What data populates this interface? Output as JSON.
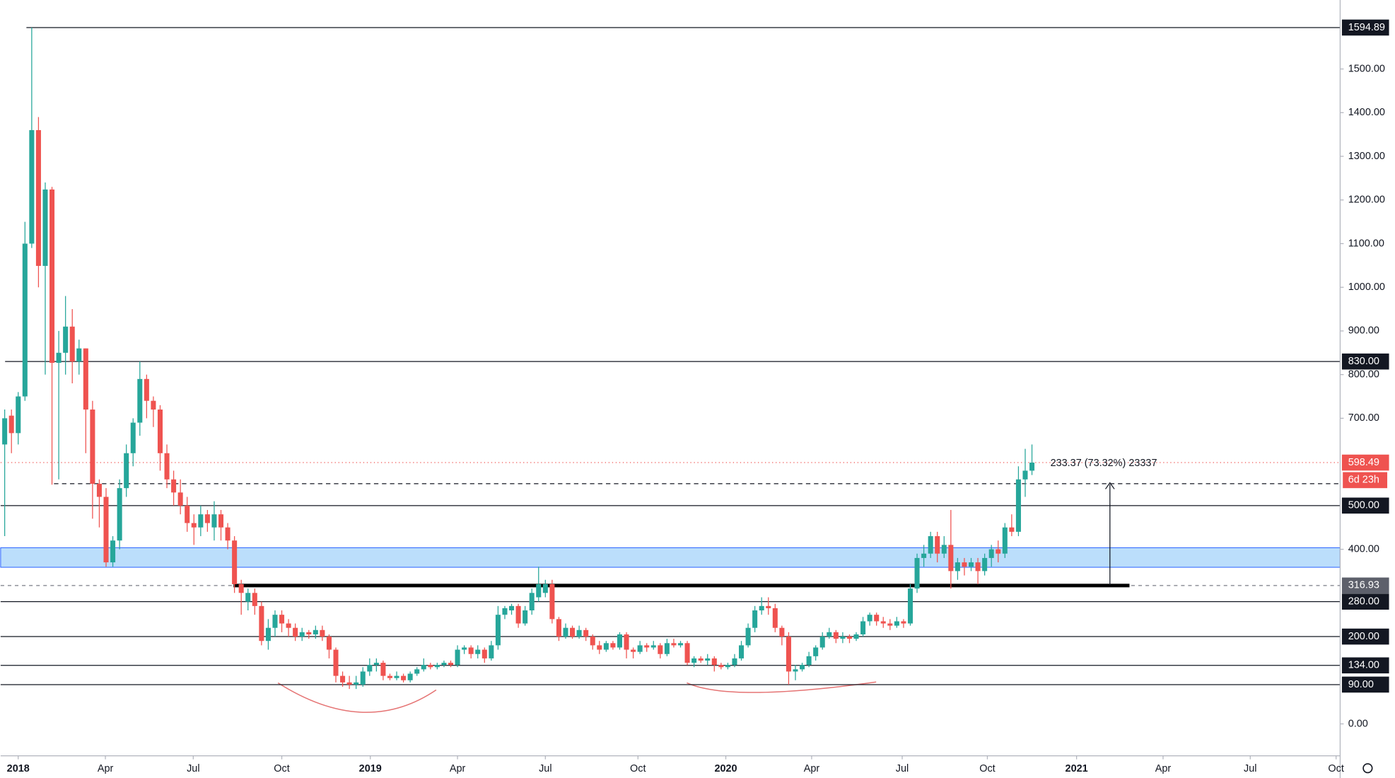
{
  "chart_data": {
    "type": "candlestick",
    "up_color": "#26a69a",
    "down_color": "#ef5350",
    "ohlc": [
      [
        640,
        720,
        430,
        700
      ],
      [
        706,
        720,
        620,
        666
      ],
      [
        666,
        760,
        640,
        750
      ],
      [
        750,
        1150,
        740,
        1100
      ],
      [
        1100,
        1595,
        1090,
        1360
      ],
      [
        1360,
        1390,
        1000,
        1049
      ],
      [
        1049,
        1240,
        800,
        1224
      ],
      [
        1224,
        1230,
        548,
        827
      ],
      [
        827,
        900,
        560,
        850
      ],
      [
        850,
        980,
        800,
        910
      ],
      [
        910,
        950,
        780,
        830
      ],
      [
        830,
        880,
        800,
        860
      ],
      [
        860,
        860,
        620,
        720
      ],
      [
        720,
        740,
        470,
        550
      ],
      [
        550,
        560,
        450,
        520
      ],
      [
        520,
        540,
        360,
        370
      ],
      [
        370,
        430,
        360,
        420
      ],
      [
        420,
        560,
        400,
        540
      ],
      [
        540,
        640,
        520,
        620
      ],
      [
        620,
        700,
        590,
        690
      ],
      [
        690,
        830,
        660,
        790
      ],
      [
        790,
        800,
        700,
        740
      ],
      [
        740,
        750,
        680,
        720
      ],
      [
        720,
        730,
        580,
        620
      ],
      [
        620,
        640,
        540,
        560
      ],
      [
        560,
        580,
        500,
        530
      ],
      [
        530,
        560,
        480,
        500
      ],
      [
        500,
        520,
        440,
        460
      ],
      [
        460,
        480,
        410,
        450
      ],
      [
        450,
        500,
        430,
        480
      ],
      [
        480,
        490,
        440,
        460
      ],
      [
        450,
        510,
        420,
        480
      ],
      [
        480,
        490,
        420,
        450
      ],
      [
        450,
        460,
        400,
        420
      ],
      [
        420,
        430,
        300,
        320
      ],
      [
        320,
        330,
        250,
        300
      ],
      [
        280,
        310,
        260,
        300
      ],
      [
        300,
        310,
        250,
        270
      ],
      [
        270,
        280,
        180,
        190
      ],
      [
        190,
        240,
        170,
        220
      ],
      [
        220,
        260,
        200,
        250
      ],
      [
        250,
        260,
        210,
        230
      ],
      [
        230,
        240,
        200,
        220
      ],
      [
        220,
        230,
        190,
        200
      ],
      [
        200,
        220,
        190,
        210
      ],
      [
        210,
        215,
        195,
        205
      ],
      [
        205,
        225,
        195,
        215
      ],
      [
        215,
        225,
        190,
        200
      ],
      [
        200,
        205,
        150,
        170
      ],
      [
        170,
        175,
        95,
        110
      ],
      [
        110,
        120,
        85,
        95
      ],
      [
        95,
        110,
        80,
        90
      ],
      [
        90,
        110,
        80,
        95
      ],
      [
        90,
        130,
        85,
        120
      ],
      [
        120,
        150,
        110,
        135
      ],
      [
        135,
        150,
        120,
        140
      ],
      [
        140,
        145,
        100,
        110
      ],
      [
        110,
        115,
        100,
        105
      ],
      [
        105,
        120,
        100,
        110
      ],
      [
        110,
        115,
        95,
        100
      ],
      [
        100,
        120,
        95,
        115
      ],
      [
        115,
        130,
        110,
        125
      ],
      [
        125,
        150,
        120,
        135
      ],
      [
        135,
        140,
        125,
        130
      ],
      [
        130,
        140,
        125,
        135
      ],
      [
        135,
        145,
        130,
        140
      ],
      [
        140,
        145,
        130,
        135
      ],
      [
        135,
        180,
        130,
        170
      ],
      [
        170,
        180,
        160,
        175
      ],
      [
        175,
        180,
        150,
        160
      ],
      [
        160,
        180,
        150,
        170
      ],
      [
        170,
        175,
        140,
        150
      ],
      [
        150,
        190,
        145,
        180
      ],
      [
        180,
        270,
        170,
        250
      ],
      [
        250,
        270,
        240,
        265
      ],
      [
        260,
        275,
        250,
        270
      ],
      [
        270,
        275,
        220,
        230
      ],
      [
        230,
        270,
        225,
        260
      ],
      [
        260,
        310,
        250,
        300
      ],
      [
        290,
        360,
        280,
        320
      ],
      [
        300,
        330,
        290,
        320
      ],
      [
        320,
        330,
        230,
        240
      ],
      [
        240,
        245,
        190,
        200
      ],
      [
        200,
        230,
        195,
        220
      ],
      [
        220,
        225,
        195,
        200
      ],
      [
        200,
        225,
        195,
        215
      ],
      [
        215,
        220,
        190,
        200
      ],
      [
        200,
        205,
        170,
        180
      ],
      [
        180,
        190,
        160,
        170
      ],
      [
        170,
        190,
        165,
        185
      ],
      [
        185,
        190,
        170,
        175
      ],
      [
        175,
        210,
        170,
        205
      ],
      [
        205,
        210,
        150,
        170
      ],
      [
        170,
        175,
        150,
        165
      ],
      [
        165,
        190,
        160,
        180
      ],
      [
        180,
        185,
        165,
        175
      ],
      [
        175,
        190,
        170,
        180
      ],
      [
        180,
        185,
        150,
        160
      ],
      [
        160,
        195,
        155,
        185
      ],
      [
        185,
        195,
        175,
        180
      ],
      [
        180,
        190,
        175,
        185
      ],
      [
        185,
        190,
        135,
        140
      ],
      [
        140,
        155,
        130,
        150
      ],
      [
        150,
        155,
        140,
        145
      ],
      [
        145,
        160,
        135,
        150
      ],
      [
        150,
        155,
        120,
        135
      ],
      [
        135,
        140,
        125,
        130
      ],
      [
        130,
        140,
        125,
        135
      ],
      [
        135,
        160,
        130,
        150
      ],
      [
        150,
        190,
        145,
        180
      ],
      [
        180,
        230,
        175,
        220
      ],
      [
        220,
        270,
        210,
        260
      ],
      [
        260,
        290,
        250,
        270
      ],
      [
        270,
        290,
        250,
        265
      ],
      [
        265,
        275,
        210,
        220
      ],
      [
        220,
        225,
        180,
        200
      ],
      [
        200,
        210,
        90,
        120
      ],
      [
        120,
        135,
        100,
        125
      ],
      [
        125,
        140,
        120,
        135
      ],
      [
        135,
        165,
        130,
        155
      ],
      [
        155,
        180,
        145,
        175
      ],
      [
        175,
        210,
        170,
        200
      ],
      [
        200,
        220,
        195,
        210
      ],
      [
        210,
        215,
        185,
        195
      ],
      [
        195,
        210,
        185,
        200
      ],
      [
        200,
        205,
        185,
        195
      ],
      [
        195,
        210,
        190,
        205
      ],
      [
        205,
        245,
        200,
        235
      ],
      [
        235,
        255,
        225,
        250
      ],
      [
        250,
        255,
        225,
        235
      ],
      [
        235,
        245,
        220,
        230
      ],
      [
        230,
        240,
        215,
        225
      ],
      [
        225,
        245,
        220,
        235
      ],
      [
        235,
        240,
        220,
        230
      ],
      [
        230,
        320,
        225,
        310
      ],
      [
        310,
        390,
        300,
        380
      ],
      [
        380,
        410,
        360,
        390
      ],
      [
        390,
        440,
        380,
        430
      ],
      [
        430,
        440,
        370,
        390
      ],
      [
        390,
        430,
        380,
        410
      ],
      [
        410,
        490,
        310,
        350
      ],
      [
        350,
        380,
        330,
        370
      ],
      [
        370,
        380,
        340,
        360
      ],
      [
        360,
        380,
        350,
        370
      ],
      [
        370,
        380,
        320,
        350
      ],
      [
        350,
        390,
        340,
        380
      ],
      [
        380,
        410,
        360,
        400
      ],
      [
        400,
        420,
        370,
        390
      ],
      [
        390,
        460,
        380,
        450
      ],
      [
        450,
        480,
        430,
        440
      ],
      [
        440,
        590,
        430,
        560
      ],
      [
        560,
        630,
        520,
        580
      ],
      [
        580,
        640,
        570,
        598.49
      ]
    ],
    "xlim": [
      -0.6,
      197.6
    ],
    "xticks": [
      {
        "value": 2,
        "label": "2018"
      },
      {
        "value": 14.9,
        "label": "Apr"
      },
      {
        "value": 27.9,
        "label": "Jul"
      },
      {
        "value": 41,
        "label": "Oct"
      },
      {
        "value": 54.1,
        "label": "2019"
      },
      {
        "value": 67,
        "label": "Apr"
      },
      {
        "value": 80,
        "label": "Jul"
      },
      {
        "value": 93.7,
        "label": "Oct"
      },
      {
        "value": 106.7,
        "label": "2020"
      },
      {
        "value": 119.4,
        "label": "Apr"
      },
      {
        "value": 132.8,
        "label": "Jul"
      },
      {
        "value": 145.4,
        "label": "Oct"
      },
      {
        "value": 158.6,
        "label": "2021"
      },
      {
        "value": 171.4,
        "label": "Apr"
      },
      {
        "value": 184.3,
        "label": "Jul"
      },
      {
        "value": 197,
        "label": "Oct"
      }
    ],
    "ylim": [
      -73,
      1658
    ],
    "yticks": [
      {
        "value": 0,
        "label": "0.00"
      },
      {
        "value": 400,
        "label": "400.00"
      },
      {
        "value": 700,
        "label": "700.00"
      },
      {
        "value": 800,
        "label": "800.00"
      },
      {
        "value": 900,
        "label": "900.00"
      },
      {
        "value": 1000,
        "label": "1000.00"
      },
      {
        "value": 1100,
        "label": "1100.00"
      },
      {
        "value": 1200,
        "label": "1200.00"
      },
      {
        "value": 1300,
        "label": "1300.00"
      },
      {
        "value": 1400,
        "label": "1400.00"
      },
      {
        "value": 1500,
        "label": "1500.00"
      }
    ],
    "levels": [
      1594.89,
      {
        "value": 830,
        "label": "830.00"
      },
      {
        "value": 500,
        "label": "500.00"
      },
      {
        "value": 280,
        "label": "280.00"
      },
      {
        "value": 200,
        "label": "200.00"
      },
      {
        "value": 134,
        "label": "134.00"
      },
      {
        "value": 90,
        "label": "90.00"
      }
    ],
    "support": 316.93,
    "last_price": 598.49,
    "countdown": "6d 23h",
    "measure": "233.37 (73.32%) 23337"
  }
}
